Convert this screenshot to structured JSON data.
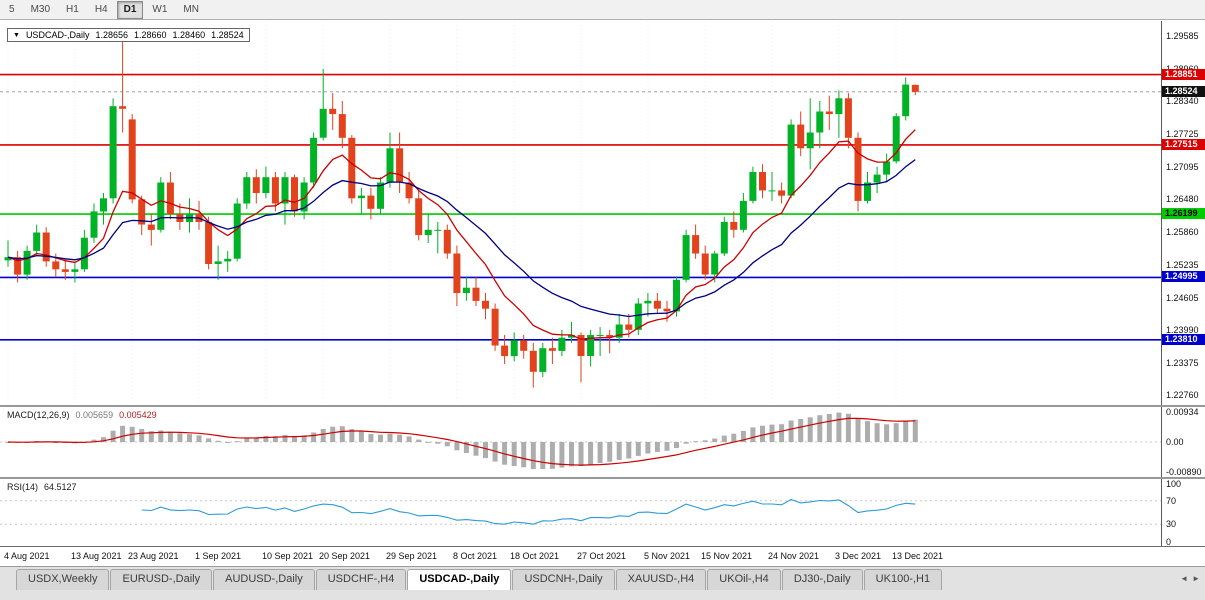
{
  "toolbar": {
    "periods": [
      "5",
      "M30",
      "H1",
      "H4",
      "D1",
      "W1",
      "MN"
    ],
    "active_period": "D1"
  },
  "header": {
    "arrow": "▼",
    "title": "USDCAD-,Daily",
    "open": "1.28656",
    "high": "1.28660",
    "low": "1.28460",
    "close": "1.28524"
  },
  "chart_data": {
    "type": "candlestick",
    "symbol": "USDCAD",
    "timeframe": "Daily",
    "up_color": "#00b226",
    "down_color": "#e2431c",
    "grid_color": "#ededed",
    "main_scale": {
      "top": 1.2987,
      "bottom": 1.2257
    },
    "candles": [
      [
        1.2532,
        1.257,
        1.252,
        1.2538
      ],
      [
        1.2538,
        1.255,
        1.249,
        1.2505
      ],
      [
        1.2505,
        1.256,
        1.2495,
        1.255
      ],
      [
        1.255,
        1.26,
        1.254,
        1.2585
      ],
      [
        1.2585,
        1.2595,
        1.252,
        1.253
      ],
      [
        1.253,
        1.2545,
        1.25,
        1.2515
      ],
      [
        1.2515,
        1.2535,
        1.2495,
        1.251
      ],
      [
        1.251,
        1.253,
        1.249,
        1.2515
      ],
      [
        1.2515,
        1.259,
        1.251,
        1.2575
      ],
      [
        1.2575,
        1.264,
        1.2565,
        1.2625
      ],
      [
        1.2625,
        1.266,
        1.26,
        1.265
      ],
      [
        1.265,
        1.284,
        1.264,
        1.2825
      ],
      [
        1.2825,
        1.2949,
        1.2775,
        1.282
      ],
      [
        1.28,
        1.281,
        1.264,
        1.2648
      ],
      [
        1.2648,
        1.2655,
        1.258,
        1.26
      ],
      [
        1.26,
        1.262,
        1.256,
        1.259
      ],
      [
        1.259,
        1.269,
        1.2585,
        1.268
      ],
      [
        1.268,
        1.27,
        1.261,
        1.262
      ],
      [
        1.262,
        1.264,
        1.259,
        1.2605
      ],
      [
        1.2605,
        1.265,
        1.2585,
        1.262
      ],
      [
        1.262,
        1.2645,
        1.259,
        1.2605
      ],
      [
        1.2605,
        1.2615,
        1.2515,
        1.2525
      ],
      [
        1.2525,
        1.256,
        1.2495,
        1.253
      ],
      [
        1.253,
        1.255,
        1.251,
        1.2535
      ],
      [
        1.2535,
        1.265,
        1.253,
        1.264
      ],
      [
        1.264,
        1.27,
        1.263,
        1.269
      ],
      [
        1.269,
        1.2705,
        1.264,
        1.266
      ],
      [
        1.266,
        1.271,
        1.265,
        1.269
      ],
      [
        1.269,
        1.27,
        1.2625,
        1.264
      ],
      [
        1.264,
        1.27,
        1.26,
        1.269
      ],
      [
        1.269,
        1.2695,
        1.2615,
        1.2625
      ],
      [
        1.2625,
        1.269,
        1.261,
        1.268
      ],
      [
        1.268,
        1.2775,
        1.267,
        1.2765
      ],
      [
        1.2765,
        1.2896,
        1.276,
        1.282
      ],
      [
        1.282,
        1.285,
        1.278,
        1.281
      ],
      [
        1.281,
        1.2835,
        1.2745,
        1.2765
      ],
      [
        1.2765,
        1.277,
        1.264,
        1.265
      ],
      [
        1.265,
        1.267,
        1.262,
        1.2655
      ],
      [
        1.2655,
        1.267,
        1.261,
        1.263
      ],
      [
        1.263,
        1.269,
        1.262,
        1.268
      ],
      [
        1.268,
        1.2775,
        1.267,
        1.2745
      ],
      [
        1.2745,
        1.2775,
        1.266,
        1.268
      ],
      [
        1.268,
        1.27,
        1.264,
        1.265
      ],
      [
        1.265,
        1.2665,
        1.257,
        1.258
      ],
      [
        1.258,
        1.262,
        1.2565,
        1.259
      ],
      [
        1.259,
        1.2605,
        1.2545,
        1.259
      ],
      [
        1.259,
        1.26,
        1.2535,
        1.2545
      ],
      [
        1.2545,
        1.256,
        1.2445,
        1.247
      ],
      [
        1.247,
        1.25,
        1.2455,
        1.248
      ],
      [
        1.248,
        1.25,
        1.2445,
        1.2455
      ],
      [
        1.2455,
        1.247,
        1.242,
        1.244
      ],
      [
        1.244,
        1.245,
        1.236,
        1.237
      ],
      [
        1.237,
        1.239,
        1.2335,
        1.235
      ],
      [
        1.235,
        1.2395,
        1.234,
        1.238
      ],
      [
        1.238,
        1.239,
        1.2345,
        1.236
      ],
      [
        1.236,
        1.2375,
        1.229,
        1.232
      ],
      [
        1.232,
        1.2375,
        1.231,
        1.2365
      ],
      [
        1.2365,
        1.2385,
        1.2335,
        1.236
      ],
      [
        1.236,
        1.24,
        1.235,
        1.2385
      ],
      [
        1.2385,
        1.2415,
        1.2375,
        1.239
      ],
      [
        1.239,
        1.2395,
        1.23,
        1.235
      ],
      [
        1.235,
        1.24,
        1.233,
        1.239
      ],
      [
        1.239,
        1.2405,
        1.235,
        1.239
      ],
      [
        1.239,
        1.24,
        1.2355,
        1.2385
      ],
      [
        1.2385,
        1.243,
        1.2375,
        1.241
      ],
      [
        1.241,
        1.243,
        1.2385,
        1.24
      ],
      [
        1.24,
        1.246,
        1.239,
        1.245
      ],
      [
        1.245,
        1.247,
        1.2425,
        1.2455
      ],
      [
        1.2455,
        1.247,
        1.243,
        1.244
      ],
      [
        1.244,
        1.2455,
        1.2415,
        1.2435
      ],
      [
        1.2435,
        1.25,
        1.2425,
        1.2495
      ],
      [
        1.2495,
        1.259,
        1.249,
        1.258
      ],
      [
        1.258,
        1.26,
        1.2535,
        1.2545
      ],
      [
        1.2545,
        1.256,
        1.2495,
        1.2505
      ],
      [
        1.2505,
        1.255,
        1.249,
        1.2545
      ],
      [
        1.2545,
        1.2615,
        1.254,
        1.2605
      ],
      [
        1.2605,
        1.2625,
        1.2575,
        1.259
      ],
      [
        1.259,
        1.266,
        1.2585,
        1.2645
      ],
      [
        1.2645,
        1.271,
        1.264,
        1.27
      ],
      [
        1.27,
        1.2715,
        1.265,
        1.2665
      ],
      [
        1.2665,
        1.27,
        1.2645,
        1.2665
      ],
      [
        1.2665,
        1.268,
        1.264,
        1.2655
      ],
      [
        1.2655,
        1.28,
        1.265,
        1.279
      ],
      [
        1.279,
        1.2815,
        1.273,
        1.2745
      ],
      [
        1.2745,
        1.284,
        1.2705,
        1.2775
      ],
      [
        1.2775,
        1.2835,
        1.2745,
        1.2815
      ],
      [
        1.2815,
        1.2845,
        1.278,
        1.281
      ],
      [
        1.281,
        1.2855,
        1.2765,
        1.284
      ],
      [
        1.284,
        1.285,
        1.2745,
        1.2765
      ],
      [
        1.2765,
        1.2775,
        1.2625,
        1.2645
      ],
      [
        1.2645,
        1.27,
        1.264,
        1.268
      ],
      [
        1.268,
        1.271,
        1.266,
        1.2695
      ],
      [
        1.2695,
        1.2735,
        1.268,
        1.272
      ],
      [
        1.272,
        1.2812,
        1.2716,
        1.2806
      ],
      [
        1.2806,
        1.288,
        1.2798,
        1.2866
      ],
      [
        1.28656,
        1.2866,
        1.2846,
        1.28524
      ]
    ],
    "x_labels": [
      {
        "index": 0,
        "label": "4 Aug 2021"
      },
      {
        "index": 7,
        "label": "13 Aug 2021"
      },
      {
        "index": 13,
        "label": "23 Aug 2021"
      },
      {
        "index": 20,
        "label": "1 Sep 2021"
      },
      {
        "index": 27,
        "label": "10 Sep 2021"
      },
      {
        "index": 33,
        "label": "20 Sep 2021"
      },
      {
        "index": 40,
        "label": "29 Sep 2021"
      },
      {
        "index": 47,
        "label": "8 Oct 2021"
      },
      {
        "index": 53,
        "label": "18 Oct 2021"
      },
      {
        "index": 60,
        "label": "27 Oct 2021"
      },
      {
        "index": 67,
        "label": "5 Nov 2021"
      },
      {
        "index": 73,
        "label": "15 Nov 2021"
      },
      {
        "index": 80,
        "label": "24 Nov 2021"
      },
      {
        "index": 87,
        "label": "3 Dec 2021"
      },
      {
        "index": 93,
        "label": "13 Dec 2021"
      }
    ],
    "y_axis_labels": [
      "1.29585",
      "1.28960",
      "1.28340",
      "1.27725",
      "1.27095",
      "1.26480",
      "1.25860",
      "1.25235",
      "1.24605",
      "1.23990",
      "1.23375",
      "1.22760"
    ],
    "hlines": [
      {
        "price": 1.28851,
        "label": "1.28851",
        "color": "#dd0000",
        "text_color": "#ffffff"
      },
      {
        "price": 1.27515,
        "label": "1.27515",
        "color": "#dd0000",
        "text_color": "#ffffff"
      },
      {
        "price": 1.26199,
        "label": "1.26199",
        "color": "#00cc00",
        "text_color": "#000000"
      },
      {
        "price": 1.24995,
        "label": "1.24995",
        "color": "#0000cc",
        "text_color": "#ffffff"
      },
      {
        "price": 1.2381,
        "label": "1.23810",
        "color": "#0000cc",
        "text_color": "#ffffff"
      }
    ],
    "current_price_badge": {
      "price": 1.28524,
      "label": "1.28524",
      "color": "#111111",
      "text_color": "#ffffff"
    },
    "moving_averages": [
      {
        "period": 9,
        "type": "ema",
        "color": "#cc0000"
      },
      {
        "period": 20,
        "type": "ema",
        "color": "#000080"
      }
    ],
    "macd": {
      "title": "MACD(12,26,9)",
      "value1": "0.005659",
      "value2": "0.005429",
      "fast": 12,
      "slow": 26,
      "signal": 9,
      "hist_color": "#adadad",
      "signal_color": "#cc0000",
      "scale": {
        "top": 0.0105,
        "bottom": -0.0105
      },
      "axis": [
        {
          "label": "0.00934",
          "value": 0.00934
        },
        {
          "label": "0.00",
          "value": 0
        },
        {
          "label": "-0.00890",
          "value": -0.0089
        }
      ]
    },
    "rsi": {
      "title": "RSI(14)",
      "value": "64.5127",
      "period": 14,
      "line_color": "#2e9bd6",
      "levels": [
        70,
        30
      ],
      "axis": [
        {
          "label": "100",
          "value": 100
        },
        {
          "label": "70",
          "value": 70
        },
        {
          "label": "30",
          "value": 30
        },
        {
          "label": "0",
          "value": 0
        }
      ]
    }
  },
  "tabs": {
    "items": [
      "USDX,Weekly",
      "EURUSD-,Daily",
      "AUDUSD-,Daily",
      "USDCHF-,H4",
      "USDCAD-,Daily",
      "USDCNH-,Daily",
      "XAUUSD-,H4",
      "UKOil-,H4",
      "DJ30-,Daily",
      "UK100-,H1"
    ],
    "active_index": 4,
    "left_arrow": "◄",
    "right_arrow": "►"
  }
}
